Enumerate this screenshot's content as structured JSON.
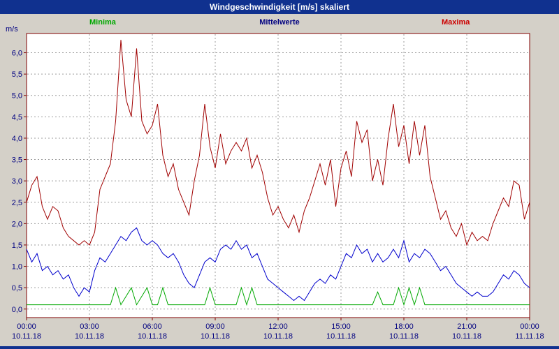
{
  "title_bar": {
    "title": "Windgeschwindigkeit [m/s] skaliert"
  },
  "legend": {
    "minima_label": "Minima",
    "mittelwerte_label": "Mittelwerte",
    "maxima_label": "Maxima"
  },
  "colors": {
    "title_bg": "#10318f",
    "minima": "#00a800",
    "mittelwerte": "#0000cc",
    "maxima": "#a00000",
    "axis_text": "#000080",
    "grid": "#9e9e9e",
    "plot_border": "#800000",
    "plot_bg": "#ffffff",
    "page_bg": "#d4d0c8"
  },
  "chart_data": {
    "type": "line",
    "title": "Windgeschwindigkeit [m/s] skaliert",
    "ylabel_unit": "m/s",
    "ylim": [
      -0.2,
      6.45
    ],
    "grid": true,
    "legend_position": "top",
    "y_ticks": [
      {
        "label": "6,0",
        "value": 6.0
      },
      {
        "label": "5,5",
        "value": 5.5
      },
      {
        "label": "5,0",
        "value": 5.0
      },
      {
        "label": "4,5",
        "value": 4.5
      },
      {
        "label": "4,0",
        "value": 4.0
      },
      {
        "label": "3,5",
        "value": 3.5
      },
      {
        "label": "3,0",
        "value": 3.0
      },
      {
        "label": "2,5",
        "value": 2.5
      },
      {
        "label": "2,0",
        "value": 2.0
      },
      {
        "label": "1,5",
        "value": 1.5
      },
      {
        "label": "1,0",
        "value": 1.0
      },
      {
        "label": "0,5",
        "value": 0.5
      },
      {
        "label": "0,0",
        "value": 0.0
      }
    ],
    "x_ticks": [
      {
        "hour": 0,
        "time": "00:00",
        "date": "10.11.18"
      },
      {
        "hour": 3,
        "time": "03:00",
        "date": "10.11.18"
      },
      {
        "hour": 6,
        "time": "06:00",
        "date": "10.11.18"
      },
      {
        "hour": 9,
        "time": "09:00",
        "date": "10.11.18"
      },
      {
        "hour": 12,
        "time": "12:00",
        "date": "10.11.18"
      },
      {
        "hour": 15,
        "time": "15:00",
        "date": "10.11.18"
      },
      {
        "hour": 18,
        "time": "18:00",
        "date": "10.11.18"
      },
      {
        "hour": 21,
        "time": "21:00",
        "date": "10.11.18"
      },
      {
        "hour": 24,
        "time": "00:00",
        "date": "11.11.18"
      }
    ],
    "x_span_hours": 24,
    "sample_interval_minutes": 15,
    "series": [
      {
        "name": "Maxima",
        "color_key": "maxima",
        "values": [
          2.5,
          2.9,
          3.1,
          2.4,
          2.1,
          2.4,
          2.3,
          1.9,
          1.7,
          1.6,
          1.5,
          1.6,
          1.5,
          1.8,
          2.8,
          3.1,
          3.4,
          4.4,
          6.3,
          4.9,
          4.5,
          6.1,
          4.4,
          4.1,
          4.3,
          4.8,
          3.6,
          3.1,
          3.4,
          2.8,
          2.5,
          2.2,
          3.0,
          3.6,
          4.8,
          3.8,
          3.3,
          4.1,
          3.4,
          3.7,
          3.9,
          3.7,
          4.0,
          3.3,
          3.6,
          3.2,
          2.6,
          2.2,
          2.4,
          2.1,
          1.9,
          2.2,
          1.8,
          2.3,
          2.6,
          3.0,
          3.4,
          2.9,
          3.5,
          2.4,
          3.3,
          3.7,
          3.1,
          4.4,
          3.9,
          4.2,
          3.0,
          3.5,
          2.9,
          4.0,
          4.8,
          3.8,
          4.3,
          3.4,
          4.4,
          3.6,
          4.3,
          3.1,
          2.6,
          2.1,
          2.3,
          1.9,
          1.7,
          2.0,
          1.5,
          1.8,
          1.6,
          1.7,
          1.6,
          2.0,
          2.3,
          2.6,
          2.4,
          3.0,
          2.9,
          2.1,
          2.5
        ]
      },
      {
        "name": "Mittelwerte",
        "color_key": "mittelwerte",
        "values": [
          1.4,
          1.1,
          1.3,
          0.9,
          1.0,
          0.8,
          0.9,
          0.7,
          0.8,
          0.5,
          0.3,
          0.5,
          0.4,
          0.9,
          1.2,
          1.1,
          1.3,
          1.5,
          1.7,
          1.6,
          1.8,
          1.9,
          1.6,
          1.5,
          1.6,
          1.5,
          1.3,
          1.2,
          1.3,
          1.1,
          0.8,
          0.6,
          0.5,
          0.8,
          1.1,
          1.2,
          1.1,
          1.4,
          1.5,
          1.4,
          1.6,
          1.4,
          1.5,
          1.2,
          1.3,
          1.0,
          0.7,
          0.6,
          0.5,
          0.4,
          0.3,
          0.2,
          0.3,
          0.2,
          0.4,
          0.6,
          0.7,
          0.6,
          0.8,
          0.7,
          1.0,
          1.3,
          1.2,
          1.5,
          1.3,
          1.4,
          1.1,
          1.3,
          1.1,
          1.2,
          1.4,
          1.2,
          1.6,
          1.1,
          1.3,
          1.2,
          1.4,
          1.3,
          1.1,
          0.9,
          1.0,
          0.8,
          0.6,
          0.5,
          0.4,
          0.3,
          0.4,
          0.3,
          0.3,
          0.4,
          0.6,
          0.8,
          0.7,
          0.9,
          0.8,
          0.6,
          0.5
        ]
      },
      {
        "name": "Minima",
        "color_key": "minima",
        "values": [
          0.1,
          0.1,
          0.1,
          0.1,
          0.1,
          0.1,
          0.1,
          0.1,
          0.1,
          0.1,
          0.1,
          0.1,
          0.1,
          0.1,
          0.1,
          0.1,
          0.1,
          0.5,
          0.1,
          0.3,
          0.5,
          0.1,
          0.3,
          0.5,
          0.1,
          0.1,
          0.5,
          0.1,
          0.1,
          0.1,
          0.1,
          0.1,
          0.1,
          0.1,
          0.1,
          0.5,
          0.1,
          0.1,
          0.1,
          0.1,
          0.1,
          0.5,
          0.1,
          0.5,
          0.1,
          0.1,
          0.1,
          0.1,
          0.1,
          0.1,
          0.1,
          0.1,
          0.1,
          0.1,
          0.1,
          0.1,
          0.1,
          0.1,
          0.1,
          0.1,
          0.1,
          0.1,
          0.1,
          0.1,
          0.1,
          0.1,
          0.1,
          0.4,
          0.1,
          0.1,
          0.1,
          0.5,
          0.1,
          0.5,
          0.1,
          0.5,
          0.1,
          0.1,
          0.1,
          0.1,
          0.1,
          0.1,
          0.1,
          0.1,
          0.1,
          0.1,
          0.1,
          0.1,
          0.1,
          0.1,
          0.1,
          0.1,
          0.1,
          0.1,
          0.1,
          0.1,
          0.1
        ]
      }
    ]
  }
}
